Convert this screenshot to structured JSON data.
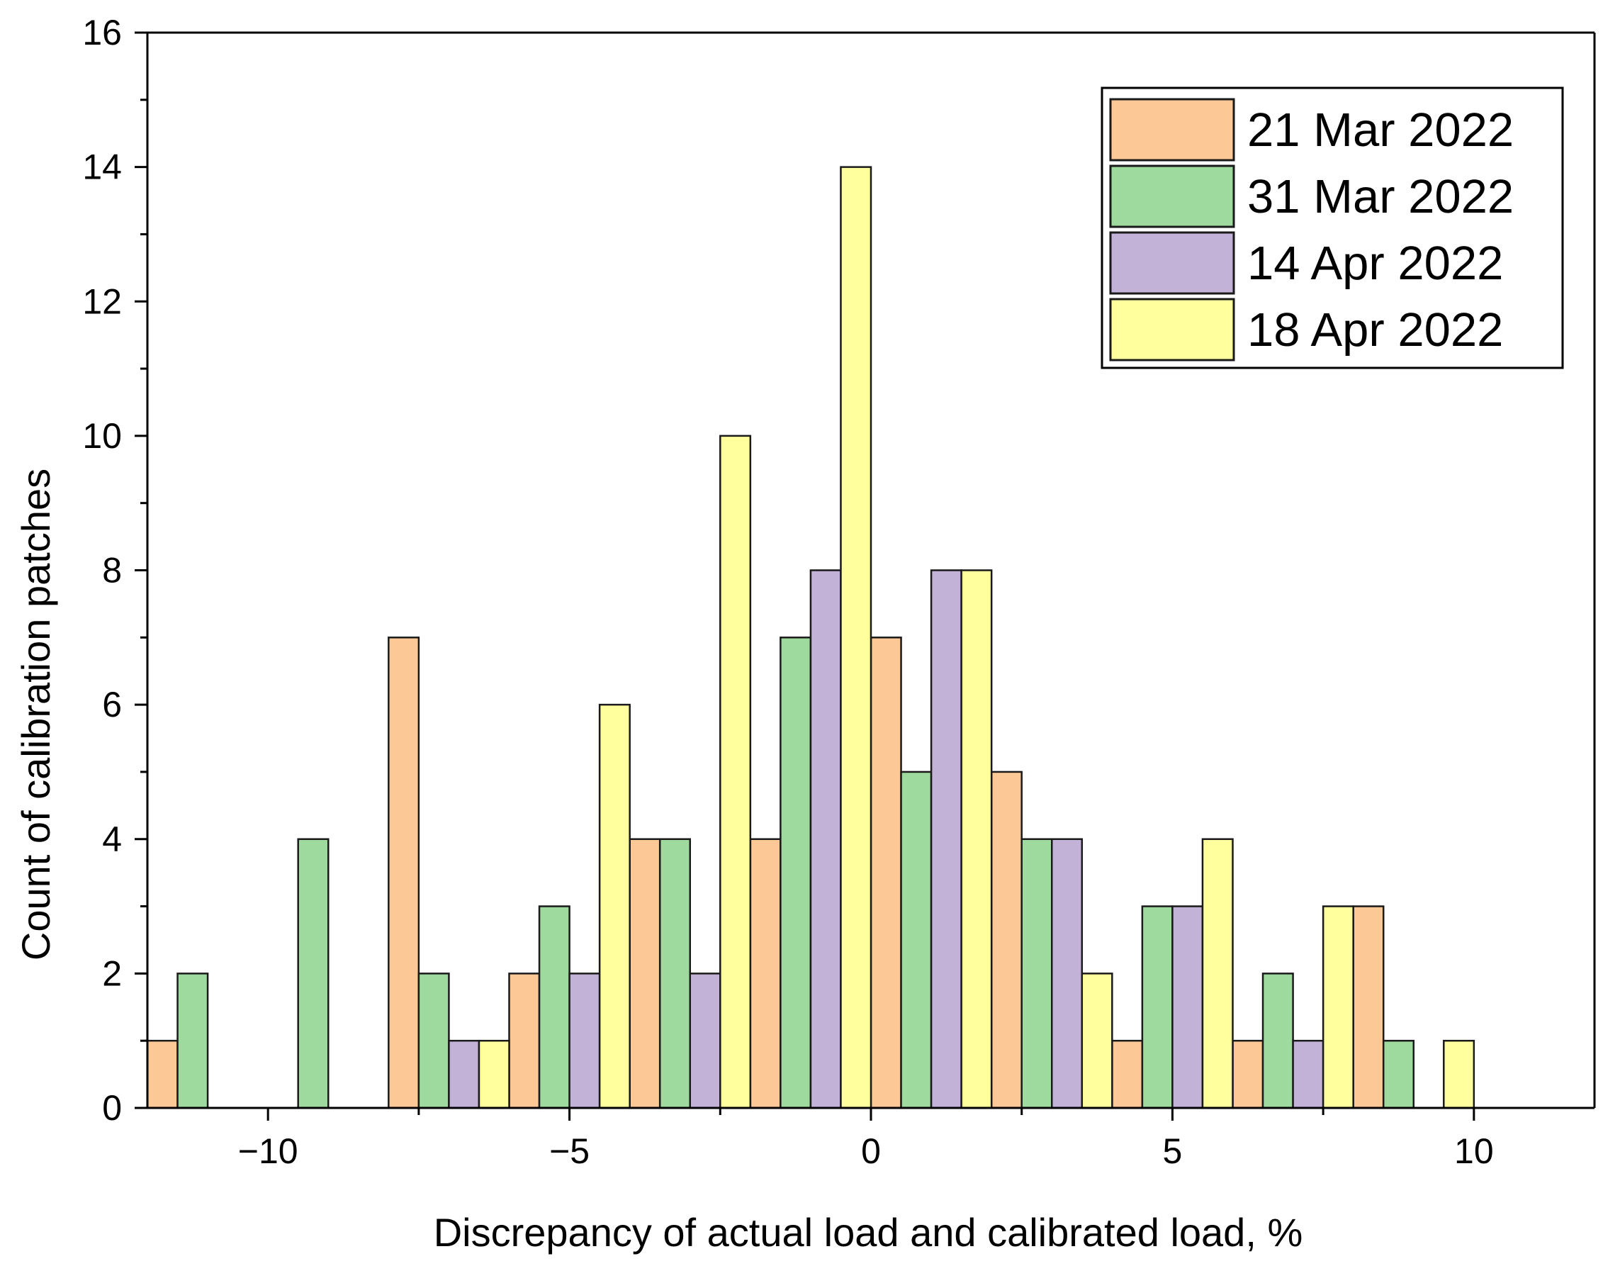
{
  "chart_data": {
    "type": "bar",
    "title": "",
    "xlabel": "Discrepancy of actual load and calibrated load, %",
    "ylabel": "Count of calibration patches",
    "xlim": [
      -12,
      12
    ],
    "ylim": [
      0,
      16
    ],
    "x_ticks": [
      -10,
      -5,
      0,
      5,
      10
    ],
    "x_tick_labels": [
      "−10",
      "−5",
      "0",
      "5",
      "10"
    ],
    "y_ticks": [
      0,
      2,
      4,
      6,
      8,
      10,
      12,
      14,
      16
    ],
    "y_tick_labels": [
      "0",
      "2",
      "4",
      "6",
      "8",
      "10",
      "12",
      "14",
      "16"
    ],
    "bar_width": 0.5,
    "legend_position": "top-right",
    "series": [
      {
        "name": "21 Mar 2022",
        "color": "#FCC996",
        "bars": [
          {
            "x": -11.75,
            "value": 1
          },
          {
            "x": -7.75,
            "value": 7
          },
          {
            "x": -5.75,
            "value": 2
          },
          {
            "x": -3.75,
            "value": 4
          },
          {
            "x": -1.75,
            "value": 4
          },
          {
            "x": 0.25,
            "value": 7
          },
          {
            "x": 2.25,
            "value": 5
          },
          {
            "x": 4.25,
            "value": 1
          },
          {
            "x": 6.25,
            "value": 1
          },
          {
            "x": 8.25,
            "value": 3
          }
        ]
      },
      {
        "name": "31 Mar 2022",
        "color": "#9ED99E",
        "bars": [
          {
            "x": -11.25,
            "value": 2
          },
          {
            "x": -9.25,
            "value": 4
          },
          {
            "x": -7.25,
            "value": 2
          },
          {
            "x": -5.25,
            "value": 3
          },
          {
            "x": -3.25,
            "value": 4
          },
          {
            "x": -1.25,
            "value": 7
          },
          {
            "x": 0.75,
            "value": 5
          },
          {
            "x": 2.75,
            "value": 4
          },
          {
            "x": 4.75,
            "value": 3
          },
          {
            "x": 6.75,
            "value": 2
          },
          {
            "x": 8.75,
            "value": 1
          }
        ]
      },
      {
        "name": "14 Apr 2022",
        "color": "#C2B2D7",
        "bars": [
          {
            "x": -6.75,
            "value": 1
          },
          {
            "x": -4.75,
            "value": 2
          },
          {
            "x": -2.75,
            "value": 2
          },
          {
            "x": -0.75,
            "value": 8
          },
          {
            "x": 1.25,
            "value": 8
          },
          {
            "x": 3.25,
            "value": 4
          },
          {
            "x": 5.25,
            "value": 3
          },
          {
            "x": 7.25,
            "value": 1
          }
        ]
      },
      {
        "name": "18 Apr 2022",
        "color": "#FFFF9E",
        "bars": [
          {
            "x": -6.25,
            "value": 1
          },
          {
            "x": -4.25,
            "value": 6
          },
          {
            "x": -2.25,
            "value": 10
          },
          {
            "x": -0.25,
            "value": 14
          },
          {
            "x": 1.75,
            "value": 8
          },
          {
            "x": 3.75,
            "value": 2
          },
          {
            "x": 5.75,
            "value": 4
          },
          {
            "x": 7.75,
            "value": 3
          },
          {
            "x": 9.75,
            "value": 1
          }
        ]
      }
    ]
  }
}
